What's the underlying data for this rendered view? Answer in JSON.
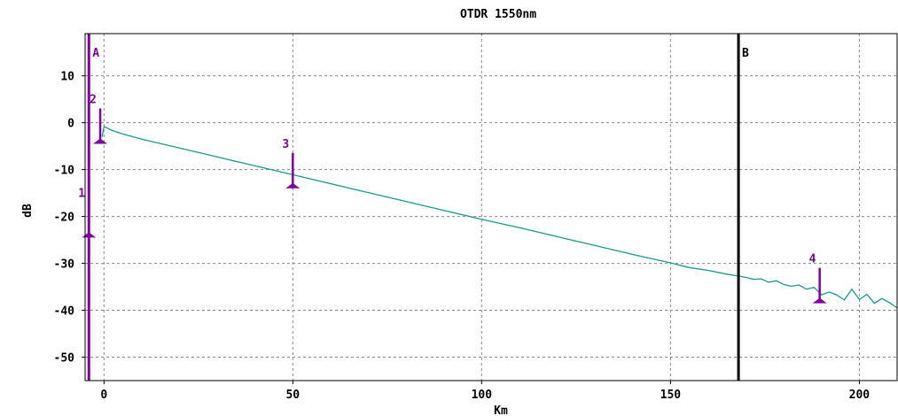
{
  "chart_data": {
    "type": "line",
    "title": "OTDR 1550nm",
    "xlabel": "Km",
    "ylabel": "dB",
    "xlim": [
      -5,
      210
    ],
    "ylim": [
      -55,
      19
    ],
    "x_ticks": [
      0,
      50,
      100,
      150,
      200
    ],
    "y_ticks": [
      10,
      0,
      -10,
      -20,
      -30,
      -40,
      -50
    ],
    "x_tick_labels": [
      "0",
      "50",
      "100",
      "150",
      "200"
    ],
    "y_tick_labels": [
      "10",
      "0",
      "-10",
      "-20",
      "-30",
      "-40",
      "-50"
    ],
    "grid": true,
    "series": [
      {
        "color": "#1a9a86",
        "x": [
          -0.5,
          0,
          1,
          2,
          5,
          10,
          20,
          30,
          40,
          50,
          60,
          70,
          80,
          90,
          100,
          110,
          120,
          130,
          140,
          150,
          155,
          160,
          165,
          168,
          170,
          172,
          174,
          176,
          178,
          180,
          182,
          184,
          186,
          188,
          190,
          192,
          194,
          196,
          198,
          200,
          202,
          204,
          206,
          208,
          210
        ],
        "y": [
          -3,
          -0.8,
          -1.2,
          -1.6,
          -2.4,
          -3.5,
          -5.4,
          -7.3,
          -9.2,
          -11.1,
          -13.0,
          -14.9,
          -16.8,
          -18.7,
          -20.6,
          -22.4,
          -24.3,
          -26.2,
          -28.1,
          -29.9,
          -30.9,
          -31.5,
          -32.3,
          -32.7,
          -33.0,
          -33.4,
          -33.3,
          -34.0,
          -33.7,
          -34.5,
          -34.9,
          -34.6,
          -35.5,
          -35.1,
          -36.7,
          -36.1,
          -36.7,
          -37.8,
          -35.5,
          -37.7,
          -36.6,
          -38.5,
          -37.5,
          -38.4,
          -39.5
        ]
      }
    ],
    "cursors": [
      {
        "label": "A",
        "x": -4,
        "color": "#8000a0"
      },
      {
        "label": "B",
        "x": 168,
        "color": "#000000"
      }
    ],
    "markers": [
      {
        "label": "1",
        "x": -4,
        "y": -24.5
      },
      {
        "label": "2",
        "x": -1,
        "y": -4.5
      },
      {
        "label": "3",
        "x": 50,
        "y": -14
      },
      {
        "label": "4",
        "x": 189.5,
        "y": -38.5
      }
    ],
    "marker_color": "#8000a0"
  }
}
